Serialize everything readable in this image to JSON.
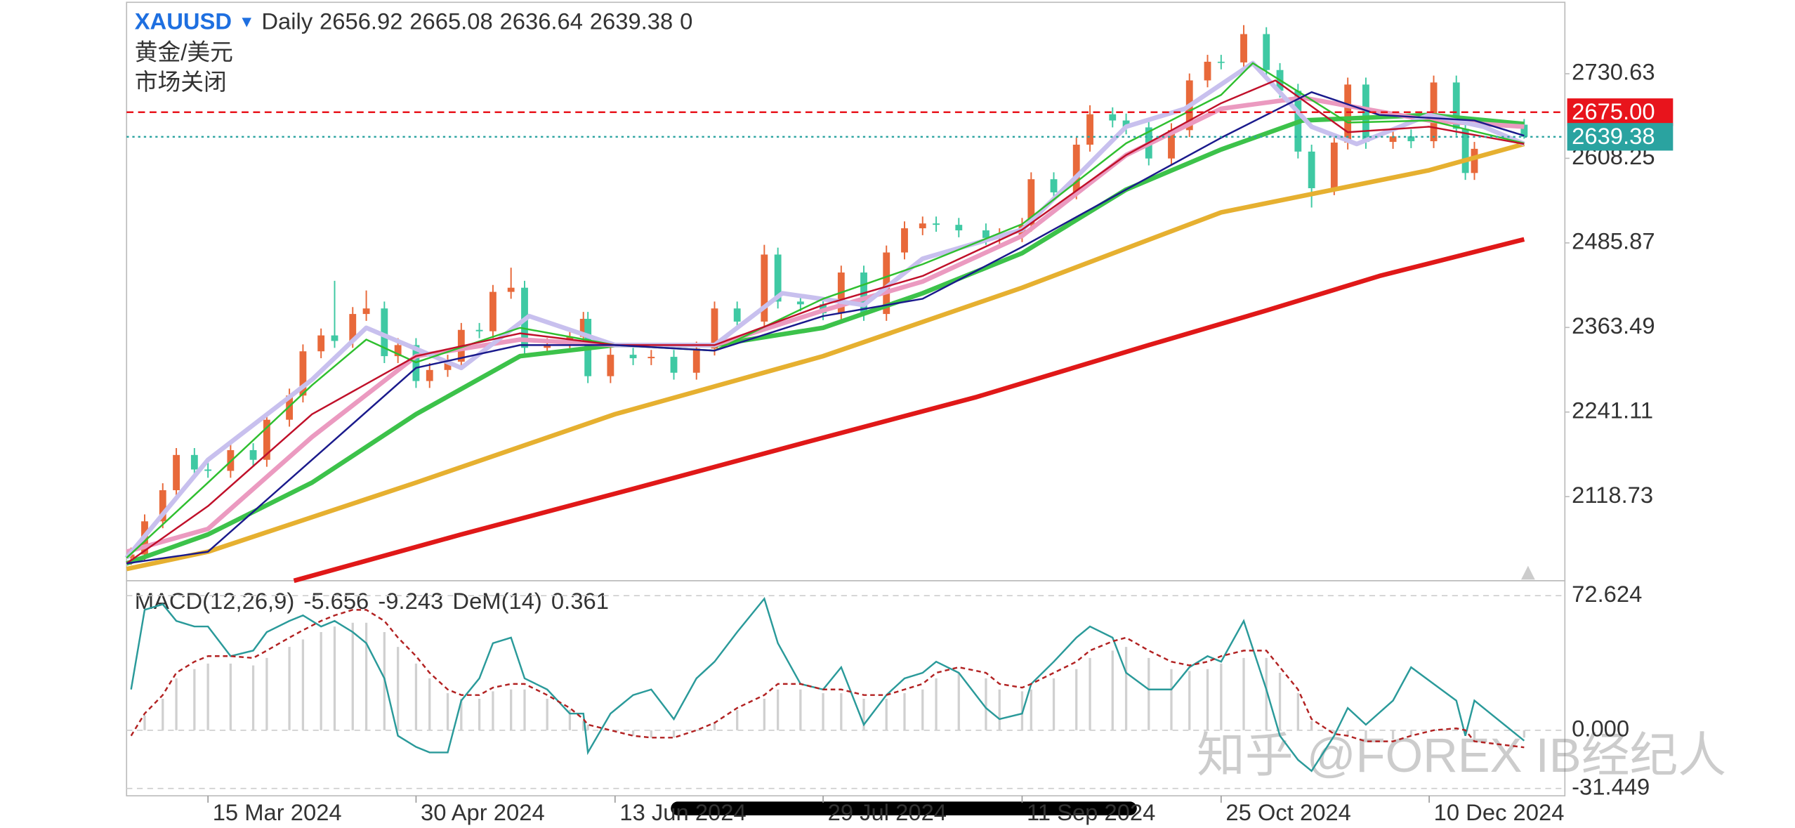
{
  "chart_data": [
    {
      "type": "candlestick",
      "title": "XAUUSD",
      "interval": "Daily",
      "ohlc_header": [
        2656.92,
        2665.08,
        2636.64,
        2639.38,
        0
      ],
      "subtitle": "黄金/美元",
      "status": "市场关闭",
      "up_color": "#e8693a",
      "down_color": "#3fc9a3",
      "xlim": [
        "2024-02-26",
        "2025-01-09"
      ],
      "ylim": [
        1997,
        2834
      ],
      "yticks": [
        2730.63,
        2608.25,
        2485.87,
        2363.49,
        2241.11,
        2118.73
      ],
      "xticks": [
        {
          "value": "2024-03-15",
          "label": "15 Mar 2024"
        },
        {
          "value": "2024-04-30",
          "label": "30 Apr 2024"
        },
        {
          "value": "2024-06-13",
          "label": "13 Jun 2024"
        },
        {
          "value": "2024-07-29",
          "label": "29 Jul 2024"
        },
        {
          "value": "2024-09-11",
          "label": "11 Sep 2024"
        },
        {
          "value": "2024-10-25",
          "label": "25 Oct 2024"
        },
        {
          "value": "2024-12-10",
          "label": "10 Dec 2024"
        }
      ],
      "price_lines": [
        {
          "value": 2675,
          "label": "2675.00",
          "color": "#e8141c"
        },
        {
          "value": 2639.38,
          "color": "#2aa3a0"
        }
      ],
      "x": [
        "2024-02-27",
        "2024-03-01",
        "2024-03-05",
        "2024-03-08",
        "2024-03-12",
        "2024-03-15",
        "2024-03-20",
        "2024-03-25",
        "2024-03-28",
        "2024-04-02",
        "2024-04-05",
        "2024-04-09",
        "2024-04-12",
        "2024-04-16",
        "2024-04-19",
        "2024-04-23",
        "2024-04-26",
        "2024-04-30",
        "2024-05-03",
        "2024-05-07",
        "2024-05-10",
        "2024-05-14",
        "2024-05-17",
        "2024-05-21",
        "2024-05-24",
        "2024-05-29",
        "2024-06-03",
        "2024-06-06",
        "2024-06-07",
        "2024-06-12",
        "2024-06-17",
        "2024-06-21",
        "2024-06-26",
        "2024-07-01",
        "2024-07-05",
        "2024-07-10",
        "2024-07-16",
        "2024-07-19",
        "2024-07-24",
        "2024-07-29",
        "2024-08-02",
        "2024-08-07",
        "2024-08-12",
        "2024-08-16",
        "2024-08-20",
        "2024-08-23",
        "2024-08-28",
        "2024-09-03",
        "2024-09-06",
        "2024-09-11",
        "2024-09-13",
        "2024-09-18",
        "2024-09-23",
        "2024-09-26",
        "2024-10-01",
        "2024-10-04",
        "2024-10-09",
        "2024-10-14",
        "2024-10-18",
        "2024-10-22",
        "2024-10-25",
        "2024-10-30",
        "2024-11-04",
        "2024-11-07",
        "2024-11-11",
        "2024-11-14",
        "2024-11-19",
        "2024-11-22",
        "2024-11-26",
        "2024-12-02",
        "2024-12-06",
        "2024-12-11",
        "2024-12-16",
        "2024-12-18",
        "2024-12-20",
        "2024-12-31"
      ],
      "ohlc": [
        [
          2030,
          2045,
          2020,
          2035
        ],
        [
          2035,
          2093,
          2025,
          2083
        ],
        [
          2083,
          2138,
          2073,
          2128
        ],
        [
          2128,
          2189,
          2118,
          2179
        ],
        [
          2179,
          2189,
          2148,
          2158
        ],
        [
          2158,
          2168,
          2146,
          2156
        ],
        [
          2156,
          2196,
          2146,
          2186
        ],
        [
          2186,
          2196,
          2162,
          2172
        ],
        [
          2172,
          2240,
          2162,
          2230
        ],
        [
          2230,
          2275,
          2220,
          2265
        ],
        [
          2265,
          2339,
          2255,
          2329
        ],
        [
          2329,
          2362,
          2319,
          2352
        ],
        [
          2352,
          2431,
          2334,
          2344
        ],
        [
          2344,
          2393,
          2334,
          2383
        ],
        [
          2383,
          2417,
          2373,
          2391
        ],
        [
          2391,
          2401,
          2312,
          2322
        ],
        [
          2322,
          2348,
          2312,
          2338
        ],
        [
          2338,
          2348,
          2276,
          2286
        ],
        [
          2286,
          2312,
          2276,
          2302
        ],
        [
          2302,
          2324,
          2292,
          2314
        ],
        [
          2314,
          2370,
          2304,
          2360
        ],
        [
          2360,
          2370,
          2348,
          2358
        ],
        [
          2358,
          2425,
          2348,
          2415
        ],
        [
          2415,
          2450,
          2405,
          2421
        ],
        [
          2421,
          2431,
          2324,
          2334
        ],
        [
          2334,
          2348,
          2324,
          2338
        ],
        [
          2338,
          2360,
          2328,
          2350
        ],
        [
          2350,
          2386,
          2340,
          2376
        ],
        [
          2376,
          2386,
          2283,
          2293
        ],
        [
          2293,
          2334,
          2283,
          2324
        ],
        [
          2324,
          2334,
          2309,
          2319
        ],
        [
          2319,
          2331,
          2309,
          2321
        ],
        [
          2321,
          2331,
          2288,
          2298
        ],
        [
          2298,
          2343,
          2288,
          2333
        ],
        [
          2333,
          2401,
          2323,
          2391
        ],
        [
          2391,
          2401,
          2362,
          2372
        ],
        [
          2372,
          2483,
          2362,
          2469
        ],
        [
          2469,
          2479,
          2391,
          2401
        ],
        [
          2401,
          2411,
          2387,
          2397
        ],
        [
          2397,
          2407,
          2374,
          2384
        ],
        [
          2384,
          2453,
          2374,
          2443
        ],
        [
          2443,
          2453,
          2373,
          2383
        ],
        [
          2383,
          2482,
          2373,
          2472
        ],
        [
          2472,
          2517,
          2462,
          2507
        ],
        [
          2507,
          2524,
          2497,
          2514
        ],
        [
          2514,
          2524,
          2502,
          2512
        ],
        [
          2512,
          2522,
          2494,
          2504
        ],
        [
          2504,
          2514,
          2483,
          2493
        ],
        [
          2493,
          2507,
          2483,
          2497
        ],
        [
          2497,
          2522,
          2487,
          2512
        ],
        [
          2512,
          2588,
          2502,
          2578
        ],
        [
          2578,
          2588,
          2549,
          2559
        ],
        [
          2559,
          2638,
          2549,
          2628
        ],
        [
          2628,
          2685,
          2618,
          2672
        ],
        [
          2672,
          2682,
          2653,
          2663
        ],
        [
          2663,
          2673,
          2643,
          2653
        ],
        [
          2653,
          2663,
          2598,
          2608
        ],
        [
          2608,
          2659,
          2598,
          2649
        ],
        [
          2649,
          2731,
          2639,
          2721
        ],
        [
          2721,
          2758,
          2711,
          2748
        ],
        [
          2748,
          2758,
          2737,
          2747
        ],
        [
          2747,
          2801,
          2737,
          2788
        ],
        [
          2788,
          2798,
          2726,
          2736
        ],
        [
          2736,
          2746,
          2696,
          2706
        ],
        [
          2706,
          2716,
          2608,
          2618
        ],
        [
          2618,
          2628,
          2537,
          2565
        ],
        [
          2565,
          2641,
          2555,
          2631
        ],
        [
          2631,
          2725,
          2621,
          2715
        ],
        [
          2715,
          2725,
          2622,
          2632
        ],
        [
          2632,
          2650,
          2622,
          2640
        ],
        [
          2640,
          2650,
          2623,
          2633
        ],
        [
          2633,
          2728,
          2623,
          2718
        ],
        [
          2718,
          2728,
          2641,
          2651
        ],
        [
          2651,
          2661,
          2577,
          2587
        ],
        [
          2587,
          2632,
          2577,
          2622
        ],
        [
          2656.92,
          2665.08,
          2636.64,
          2639.38
        ]
      ],
      "series": [
        {
          "color": "#e01818",
          "x": [
            "2024-04-03",
            "2024-05-10",
            "2024-06-17",
            "2024-07-25",
            "2024-09-01",
            "2024-10-09",
            "2024-11-04",
            "2024-11-29",
            "2024-12-31"
          ],
          "values": [
            1997,
            2064,
            2130,
            2197,
            2263,
            2338,
            2388,
            2438,
            2491
          ]
        },
        {
          "color": "#e6b030",
          "x": [
            "2024-02-26",
            "2024-03-15",
            "2024-04-30",
            "2024-06-13",
            "2024-07-29",
            "2024-09-11",
            "2024-10-25",
            "2024-12-10",
            "2024-12-31"
          ],
          "values": [
            2014,
            2039,
            2139,
            2238,
            2322,
            2421,
            2530,
            2591,
            2629
          ]
        },
        {
          "color": "#3cc24a",
          "x": [
            "2024-02-26",
            "2024-03-15",
            "2024-04-07",
            "2024-04-30",
            "2024-05-23",
            "2024-06-13",
            "2024-07-05",
            "2024-07-29",
            "2024-08-20",
            "2024-09-11",
            "2024-10-04",
            "2024-10-25",
            "2024-11-12",
            "2024-12-10",
            "2024-12-31"
          ],
          "values": [
            2022,
            2064,
            2139,
            2238,
            2322,
            2338,
            2338,
            2363,
            2413,
            2471,
            2563,
            2621,
            2663,
            2671,
            2658
          ]
        },
        {
          "color": "#eb9ac0",
          "x": [
            "2024-02-26",
            "2024-03-15",
            "2024-04-07",
            "2024-04-30",
            "2024-05-23",
            "2024-06-13",
            "2024-07-05",
            "2024-07-29",
            "2024-08-20",
            "2024-09-11",
            "2024-10-04",
            "2024-10-25",
            "2024-11-12",
            "2024-12-10",
            "2024-12-31"
          ],
          "values": [
            2039,
            2072,
            2205,
            2322,
            2346,
            2338,
            2338,
            2388,
            2430,
            2496,
            2613,
            2680,
            2696,
            2663,
            2654
          ]
        },
        {
          "color": "#c8c0ee",
          "x": [
            "2024-02-26",
            "2024-03-15",
            "2024-04-07",
            "2024-04-19",
            "2024-05-10",
            "2024-05-25",
            "2024-06-13",
            "2024-07-05",
            "2024-07-20",
            "2024-08-07",
            "2024-08-20",
            "2024-09-11",
            "2024-09-24",
            "2024-10-04",
            "2024-10-17",
            "2024-11-01",
            "2024-11-14",
            "2024-11-24",
            "2024-12-10",
            "2024-12-22",
            "2024-12-31"
          ],
          "values": [
            2030,
            2172,
            2288,
            2363,
            2305,
            2380,
            2338,
            2338,
            2413,
            2396,
            2463,
            2505,
            2588,
            2654,
            2680,
            2746,
            2654,
            2629,
            2671,
            2654,
            2629
          ]
        },
        {
          "color": "#2fbf2f",
          "x": [
            "2024-02-26",
            "2024-03-15",
            "2024-04-07",
            "2024-04-19",
            "2024-04-30",
            "2024-05-23",
            "2024-06-13",
            "2024-07-05",
            "2024-07-29",
            "2024-08-20",
            "2024-09-11",
            "2024-10-04",
            "2024-10-25",
            "2024-11-01",
            "2024-11-22",
            "2024-12-10",
            "2024-12-31"
          ],
          "values": [
            2030,
            2139,
            2280,
            2346,
            2313,
            2363,
            2338,
            2330,
            2405,
            2455,
            2513,
            2630,
            2700,
            2746,
            2660,
            2663,
            2630
          ]
        },
        {
          "color": "#c0102a",
          "x": [
            "2024-02-26",
            "2024-03-15",
            "2024-04-07",
            "2024-04-30",
            "2024-05-23",
            "2024-06-13",
            "2024-07-05",
            "2024-07-29",
            "2024-08-20",
            "2024-09-11",
            "2024-10-04",
            "2024-10-25",
            "2024-11-06",
            "2024-11-22",
            "2024-12-10",
            "2024-12-31"
          ],
          "values": [
            2022,
            2105,
            2238,
            2322,
            2355,
            2338,
            2338,
            2396,
            2438,
            2505,
            2613,
            2688,
            2721,
            2646,
            2654,
            2629
          ]
        },
        {
          "color": "#1a1a8c",
          "x": [
            "2024-02-26",
            "2024-03-15",
            "2024-04-07",
            "2024-04-30",
            "2024-05-23",
            "2024-06-13",
            "2024-07-05",
            "2024-07-29",
            "2024-08-20",
            "2024-09-11",
            "2024-10-04",
            "2024-10-25",
            "2024-11-14",
            "2024-11-29",
            "2024-12-20",
            "2024-12-31"
          ],
          "values": [
            2022,
            2039,
            2172,
            2305,
            2338,
            2338,
            2330,
            2380,
            2405,
            2480,
            2563,
            2638,
            2704,
            2671,
            2663,
            2641
          ]
        }
      ]
    },
    {
      "type": "line",
      "title": "MACD(12,26,9)",
      "values_header": [
        -5.656,
        -9.243
      ],
      "dem_label": "DeM(14)",
      "dem": 0.361,
      "ylim": [
        -35.4,
        80.7
      ],
      "yticks": [
        72.624,
        {
          "value": 0,
          "label": "0.000"
        },
        -31.449
      ],
      "series": [
        {
          "color": "#2a9a9a",
          "values": [
            22,
            65,
            68,
            59,
            56,
            56,
            40,
            43,
            53,
            59,
            62,
            56,
            59,
            53,
            47,
            28,
            -3,
            -9,
            -12,
            -12,
            16,
            28,
            47,
            50,
            28,
            22,
            9,
            9,
            -12,
            9,
            19,
            22,
            6,
            28,
            37,
            53,
            71,
            47,
            25,
            22,
            34,
            3,
            19,
            28,
            31,
            37,
            31,
            12,
            6,
            9,
            25,
            37,
            50,
            56,
            50,
            31,
            22,
            22,
            34,
            40,
            37,
            59,
            22,
            -3,
            -16,
            -22,
            -3,
            12,
            3,
            16,
            34,
            25,
            16,
            -3,
            16,
            -5.656
          ]
        },
        {
          "color": "#b22222",
          "dash": true,
          "values": [
            -3,
            9,
            19,
            31,
            37,
            40,
            40,
            39,
            43,
            50,
            54,
            59,
            62,
            65,
            65,
            59,
            50,
            40,
            31,
            22,
            19,
            19,
            23,
            25,
            25,
            19,
            12,
            6,
            3,
            0,
            -3,
            -4,
            -4,
            0,
            4,
            12,
            19,
            25,
            25,
            22,
            22,
            19,
            19,
            22,
            25,
            31,
            34,
            31,
            25,
            23,
            25,
            31,
            37,
            43,
            48,
            50,
            43,
            37,
            35,
            37,
            40,
            43,
            43,
            34,
            22,
            6,
            -2,
            -3,
            -6,
            -6,
            -3,
            0,
            1,
            0,
            -6,
            -9.243
          ]
        }
      ],
      "bars": {
        "color": "#d0d0d0",
        "values": [
          0,
          8,
          17,
          28,
          33,
          36,
          36,
          35,
          39,
          45,
          49,
          53,
          56,
          58,
          58,
          53,
          45,
          36,
          28,
          20,
          17,
          17,
          21,
          22,
          22,
          17,
          11,
          5,
          3,
          0,
          -3,
          -4,
          -4,
          0,
          4,
          11,
          17,
          22,
          22,
          20,
          20,
          17,
          17,
          20,
          22,
          28,
          31,
          28,
          22,
          21,
          22,
          28,
          33,
          39,
          43,
          45,
          39,
          33,
          32,
          33,
          36,
          39,
          39,
          31,
          20,
          5,
          -2,
          -3,
          -5,
          -5,
          -3,
          0,
          1,
          0,
          -5,
          -4
        ]
      }
    }
  ],
  "watermark": "知乎 @FOREX IB经纪人"
}
